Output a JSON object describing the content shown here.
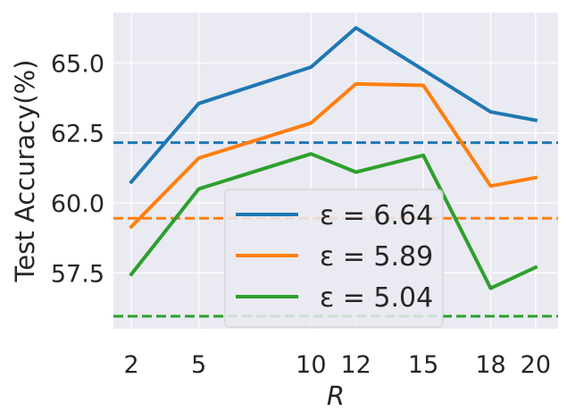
{
  "chart_data": {
    "type": "line",
    "xlabel": "R",
    "ylabel": "Test Accuracy(%)",
    "x": [
      2,
      5,
      10,
      12,
      15,
      18,
      20
    ],
    "xticks": [
      "2",
      "5",
      "10",
      "12",
      "15",
      "18",
      "20"
    ],
    "xlim": [
      1.2,
      21
    ],
    "ylim": [
      55.5,
      66.8
    ],
    "yticks": [
      "57.5",
      "60.0",
      "62.5",
      "65.0"
    ],
    "grid": true,
    "legend_position": "lower-center",
    "series": [
      {
        "name": "ε = 6.64",
        "color": "#1f77b4",
        "values": [
          60.75,
          63.55,
          64.85,
          66.25,
          64.75,
          63.25,
          62.95
        ],
        "baseline": 62.15
      },
      {
        "name": "ε = 5.89",
        "color": "#ff7f0e",
        "values": [
          59.15,
          61.6,
          62.85,
          64.25,
          64.2,
          60.6,
          60.9
        ],
        "baseline": 59.45
      },
      {
        "name": "ε = 5.04",
        "color": "#2ca02c",
        "values": [
          57.45,
          60.5,
          61.75,
          61.1,
          61.7,
          56.95,
          57.7
        ],
        "baseline": 55.95
      }
    ]
  }
}
